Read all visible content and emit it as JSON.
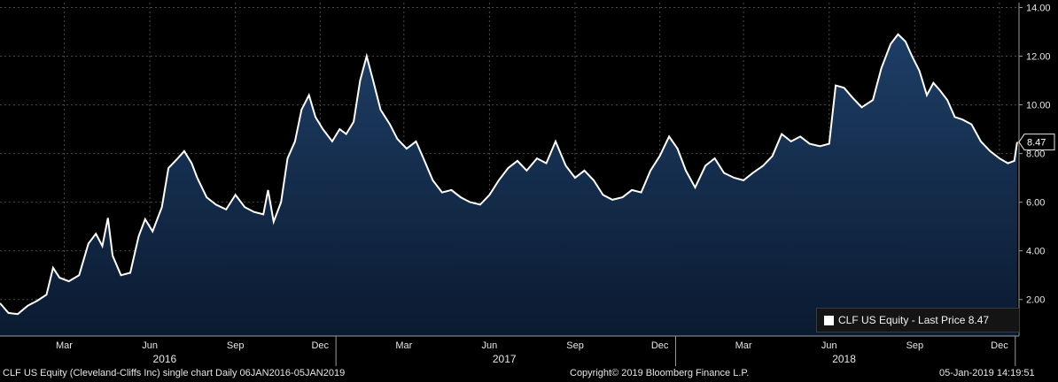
{
  "chart_data": {
    "type": "area",
    "series": [
      {
        "name": "CLF US Equity - Last Price 8.47",
        "points": [
          [
            "2016-01-06",
            1.85
          ],
          [
            "2016-01-15",
            1.45
          ],
          [
            "2016-01-25",
            1.4
          ],
          [
            "2016-02-05",
            1.75
          ],
          [
            "2016-02-15",
            1.95
          ],
          [
            "2016-02-25",
            2.2
          ],
          [
            "2016-03-03",
            3.3
          ],
          [
            "2016-03-10",
            2.9
          ],
          [
            "2016-03-20",
            2.75
          ],
          [
            "2016-03-31",
            3.0
          ],
          [
            "2016-04-10",
            4.3
          ],
          [
            "2016-04-18",
            4.7
          ],
          [
            "2016-04-25",
            4.2
          ],
          [
            "2016-05-01",
            5.35
          ],
          [
            "2016-05-06",
            3.8
          ],
          [
            "2016-05-15",
            3.0
          ],
          [
            "2016-05-25",
            3.1
          ],
          [
            "2016-06-03",
            4.6
          ],
          [
            "2016-06-10",
            5.3
          ],
          [
            "2016-06-18",
            4.8
          ],
          [
            "2016-06-28",
            5.8
          ],
          [
            "2016-07-05",
            7.4
          ],
          [
            "2016-07-15",
            7.8
          ],
          [
            "2016-07-22",
            8.1
          ],
          [
            "2016-07-30",
            7.6
          ],
          [
            "2016-08-05",
            7.0
          ],
          [
            "2016-08-15",
            6.2
          ],
          [
            "2016-08-25",
            5.9
          ],
          [
            "2016-09-05",
            5.7
          ],
          [
            "2016-09-15",
            6.3
          ],
          [
            "2016-09-25",
            5.8
          ],
          [
            "2016-10-05",
            5.6
          ],
          [
            "2016-10-15",
            5.5
          ],
          [
            "2016-10-20",
            6.5
          ],
          [
            "2016-10-26",
            5.2
          ],
          [
            "2016-11-03",
            6.0
          ],
          [
            "2016-11-10",
            7.8
          ],
          [
            "2016-11-18",
            8.5
          ],
          [
            "2016-11-25",
            9.8
          ],
          [
            "2016-12-03",
            10.4
          ],
          [
            "2016-12-10",
            9.5
          ],
          [
            "2016-12-18",
            9.0
          ],
          [
            "2016-12-28",
            8.5
          ],
          [
            "2017-01-05",
            9.0
          ],
          [
            "2017-01-12",
            8.8
          ],
          [
            "2017-01-20",
            9.3
          ],
          [
            "2017-01-27",
            11.0
          ],
          [
            "2017-02-03",
            12.0
          ],
          [
            "2017-02-10",
            11.0
          ],
          [
            "2017-02-18",
            9.8
          ],
          [
            "2017-02-28",
            9.2
          ],
          [
            "2017-03-08",
            8.6
          ],
          [
            "2017-03-18",
            8.2
          ],
          [
            "2017-03-28",
            8.5
          ],
          [
            "2017-04-05",
            7.8
          ],
          [
            "2017-04-15",
            6.9
          ],
          [
            "2017-04-25",
            6.4
          ],
          [
            "2017-05-05",
            6.5
          ],
          [
            "2017-05-15",
            6.2
          ],
          [
            "2017-05-25",
            6.0
          ],
          [
            "2017-06-05",
            5.9
          ],
          [
            "2017-06-15",
            6.3
          ],
          [
            "2017-06-25",
            6.9
          ],
          [
            "2017-07-05",
            7.4
          ],
          [
            "2017-07-15",
            7.7
          ],
          [
            "2017-07-25",
            7.3
          ],
          [
            "2017-08-05",
            7.8
          ],
          [
            "2017-08-15",
            7.6
          ],
          [
            "2017-08-25",
            8.5
          ],
          [
            "2017-09-05",
            7.5
          ],
          [
            "2017-09-15",
            7.0
          ],
          [
            "2017-09-25",
            7.3
          ],
          [
            "2017-10-05",
            6.9
          ],
          [
            "2017-10-15",
            6.3
          ],
          [
            "2017-10-25",
            6.1
          ],
          [
            "2017-11-05",
            6.2
          ],
          [
            "2017-11-15",
            6.5
          ],
          [
            "2017-11-25",
            6.4
          ],
          [
            "2017-12-05",
            7.3
          ],
          [
            "2017-12-15",
            7.9
          ],
          [
            "2017-12-25",
            8.7
          ],
          [
            "2018-01-03",
            8.2
          ],
          [
            "2018-01-12",
            7.3
          ],
          [
            "2018-01-22",
            6.6
          ],
          [
            "2018-02-02",
            7.5
          ],
          [
            "2018-02-12",
            7.8
          ],
          [
            "2018-02-22",
            7.2
          ],
          [
            "2018-03-05",
            7.0
          ],
          [
            "2018-03-15",
            6.9
          ],
          [
            "2018-03-25",
            7.2
          ],
          [
            "2018-04-05",
            7.5
          ],
          [
            "2018-04-15",
            7.9
          ],
          [
            "2018-04-25",
            8.8
          ],
          [
            "2018-05-05",
            8.5
          ],
          [
            "2018-05-15",
            8.7
          ],
          [
            "2018-05-25",
            8.4
          ],
          [
            "2018-06-05",
            8.3
          ],
          [
            "2018-06-15",
            8.4
          ],
          [
            "2018-06-22",
            10.8
          ],
          [
            "2018-07-01",
            10.7
          ],
          [
            "2018-07-10",
            10.3
          ],
          [
            "2018-07-20",
            9.9
          ],
          [
            "2018-08-01",
            10.2
          ],
          [
            "2018-08-10",
            11.5
          ],
          [
            "2018-08-20",
            12.5
          ],
          [
            "2018-08-28",
            12.9
          ],
          [
            "2018-09-05",
            12.6
          ],
          [
            "2018-09-12",
            12.0
          ],
          [
            "2018-09-20",
            11.4
          ],
          [
            "2018-09-28",
            10.4
          ],
          [
            "2018-10-05",
            10.9
          ],
          [
            "2018-10-12",
            10.6
          ],
          [
            "2018-10-20",
            10.2
          ],
          [
            "2018-10-28",
            9.5
          ],
          [
            "2018-11-05",
            9.4
          ],
          [
            "2018-11-15",
            9.2
          ],
          [
            "2018-11-25",
            8.5
          ],
          [
            "2018-12-05",
            8.1
          ],
          [
            "2018-12-15",
            7.8
          ],
          [
            "2018-12-24",
            7.6
          ],
          [
            "2018-12-31",
            7.7
          ],
          [
            "2019-01-03",
            8.47
          ]
        ]
      }
    ],
    "last_value_label": "8.47",
    "y_ticks": [
      "2.00",
      "4.00",
      "6.00",
      "8.00",
      "10.00",
      "12.00",
      "14.00"
    ],
    "y_range": [
      0.5,
      14.2
    ],
    "x_range": [
      "2016-01-06",
      "2019-01-05"
    ],
    "month_ticks": [
      {
        "date": "2016-03-15",
        "label": "Mar"
      },
      {
        "date": "2016-06-15",
        "label": "Jun"
      },
      {
        "date": "2016-09-15",
        "label": "Sep"
      },
      {
        "date": "2016-12-15",
        "label": "Dec"
      },
      {
        "date": "2017-03-15",
        "label": "Mar"
      },
      {
        "date": "2017-06-15",
        "label": "Jun"
      },
      {
        "date": "2017-09-15",
        "label": "Sep"
      },
      {
        "date": "2017-12-15",
        "label": "Dec"
      },
      {
        "date": "2018-03-15",
        "label": "Mar"
      },
      {
        "date": "2018-06-15",
        "label": "Jun"
      },
      {
        "date": "2018-09-15",
        "label": "Sep"
      },
      {
        "date": "2018-12-15",
        "label": "Dec"
      }
    ],
    "year_labels": [
      {
        "date": "2016-07-01",
        "label": "2016"
      },
      {
        "date": "2017-07-01",
        "label": "2017"
      },
      {
        "date": "2018-07-01",
        "label": "2018"
      }
    ],
    "year_dividers": [
      "2017-01-01",
      "2018-01-01",
      "2019-01-01"
    ],
    "grid": true,
    "legend_position": "bottom-right",
    "colors": {
      "line": "#ffffff",
      "fill_top": "#1e3e66",
      "fill_bottom": "#0a1a30",
      "grid": "#4a4a4a",
      "last_marker": "#f0a23c"
    }
  },
  "legend": {
    "label": "CLF US Equity - Last Price 8.47"
  },
  "footer": {
    "left": "CLF US Equity (Cleveland-Cliffs Inc) single chart  Daily 06JAN2016-05JAN2019",
    "center": "Copyright© 2019 Bloomberg Finance L.P.",
    "right": "05-Jan-2019  14:19:51"
  }
}
